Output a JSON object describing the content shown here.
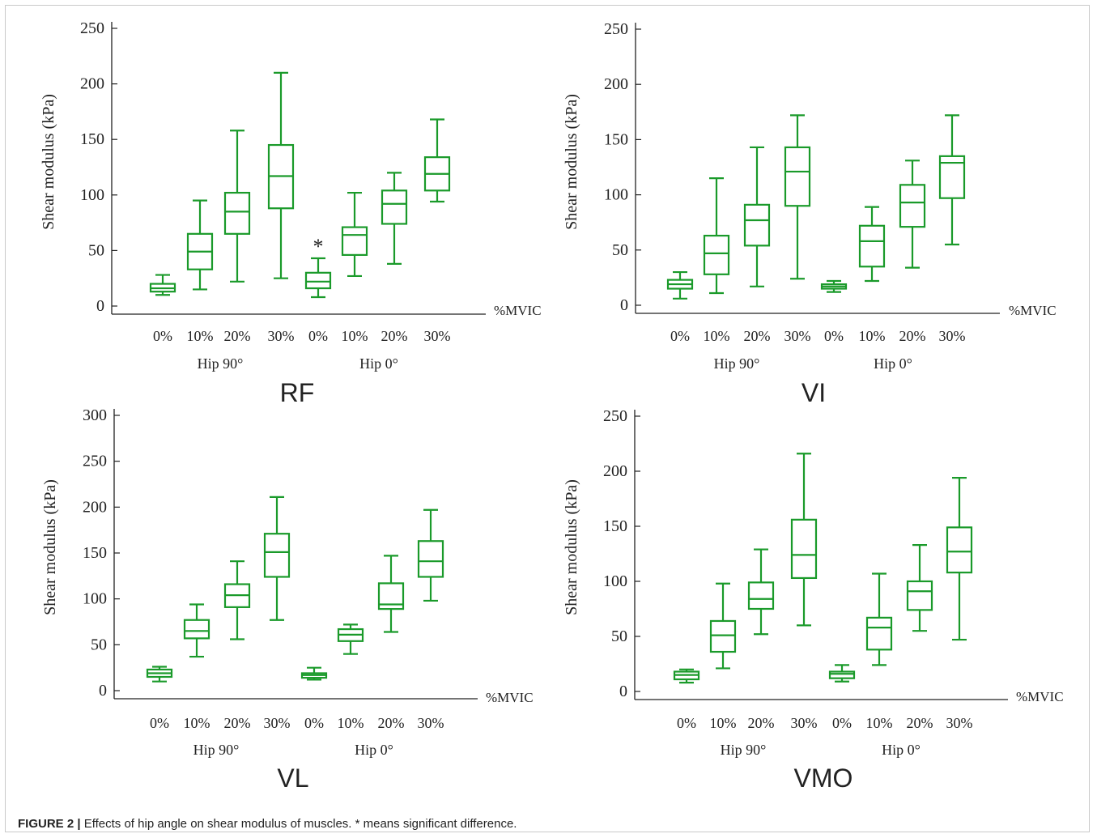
{
  "figure": {
    "caption_label": "FIGURE 2 |",
    "caption_text": " Effects of hip angle on shear modulus of muscles. * means significant difference."
  },
  "chart_data": [
    {
      "type": "box",
      "title": "RF",
      "ylabel": "Shear modulus (kPa)",
      "xlabel": "%MVIC",
      "ylim": [
        0,
        250
      ],
      "yticks": [
        0,
        50,
        100,
        150,
        200,
        250
      ],
      "groups": [
        "Hip 90°",
        "Hip 0°"
      ],
      "categories": [
        "0%",
        "10%",
        "20%",
        "30%",
        "0%",
        "10%",
        "20%",
        "30%"
      ],
      "boxes": [
        {
          "group": "Hip 90°",
          "level": "0%",
          "min": 10,
          "q1": 13,
          "median": 16,
          "q3": 20,
          "max": 28
        },
        {
          "group": "Hip 90°",
          "level": "10%",
          "min": 15,
          "q1": 33,
          "median": 49,
          "q3": 65,
          "max": 95
        },
        {
          "group": "Hip 90°",
          "level": "20%",
          "min": 22,
          "q1": 65,
          "median": 85,
          "q3": 102,
          "max": 158
        },
        {
          "group": "Hip 90°",
          "level": "30%",
          "min": 25,
          "q1": 88,
          "median": 117,
          "q3": 145,
          "max": 210
        },
        {
          "group": "Hip 0°",
          "level": "0%",
          "min": 8,
          "q1": 16,
          "median": 22,
          "q3": 30,
          "max": 43,
          "annotation": "*"
        },
        {
          "group": "Hip 0°",
          "level": "10%",
          "min": 27,
          "q1": 46,
          "median": 64,
          "q3": 71,
          "max": 102
        },
        {
          "group": "Hip 0°",
          "level": "20%",
          "min": 38,
          "q1": 74,
          "median": 92,
          "q3": 104,
          "max": 120
        },
        {
          "group": "Hip 0°",
          "level": "30%",
          "min": 94,
          "q1": 104,
          "median": 119,
          "q3": 134,
          "max": 168
        }
      ]
    },
    {
      "type": "box",
      "title": "VI",
      "ylabel": "Shear modulus (kPa)",
      "xlabel": "%MVIC",
      "ylim": [
        0,
        250
      ],
      "yticks": [
        0,
        50,
        100,
        150,
        200,
        250
      ],
      "groups": [
        "Hip 90°",
        "Hip 0°"
      ],
      "categories": [
        "0%",
        "10%",
        "20%",
        "30%",
        "0%",
        "10%",
        "20%",
        "30%"
      ],
      "boxes": [
        {
          "group": "Hip 90°",
          "level": "0%",
          "min": 6,
          "q1": 15,
          "median": 19,
          "q3": 23,
          "max": 30
        },
        {
          "group": "Hip 90°",
          "level": "10%",
          "min": 11,
          "q1": 28,
          "median": 47,
          "q3": 63,
          "max": 115
        },
        {
          "group": "Hip 90°",
          "level": "20%",
          "min": 17,
          "q1": 54,
          "median": 77,
          "q3": 91,
          "max": 143
        },
        {
          "group": "Hip 90°",
          "level": "30%",
          "min": 24,
          "q1": 90,
          "median": 121,
          "q3": 143,
          "max": 172
        },
        {
          "group": "Hip 0°",
          "level": "0%",
          "min": 12,
          "q1": 15,
          "median": 17,
          "q3": 19,
          "max": 22
        },
        {
          "group": "Hip 0°",
          "level": "10%",
          "min": 22,
          "q1": 35,
          "median": 58,
          "q3": 72,
          "max": 89
        },
        {
          "group": "Hip 0°",
          "level": "20%",
          "min": 34,
          "q1": 71,
          "median": 93,
          "q3": 109,
          "max": 131
        },
        {
          "group": "Hip 0°",
          "level": "30%",
          "min": 55,
          "q1": 97,
          "median": 129,
          "q3": 135,
          "max": 172
        }
      ]
    },
    {
      "type": "box",
      "title": "VL",
      "ylabel": "Shear modulus (kPa)",
      "xlabel": "%MVIC",
      "ylim": [
        0,
        300
      ],
      "yticks": [
        0,
        50,
        100,
        150,
        200,
        250,
        300
      ],
      "groups": [
        "Hip 90°",
        "Hip 0°"
      ],
      "categories": [
        "0%",
        "10%",
        "20%",
        "30%",
        "0%",
        "10%",
        "20%",
        "30%"
      ],
      "boxes": [
        {
          "group": "Hip 90°",
          "level": "0%",
          "min": 10,
          "q1": 15,
          "median": 19,
          "q3": 23,
          "max": 26
        },
        {
          "group": "Hip 90°",
          "level": "10%",
          "min": 37,
          "q1": 57,
          "median": 65,
          "q3": 77,
          "max": 94
        },
        {
          "group": "Hip 90°",
          "level": "20%",
          "min": 56,
          "q1": 91,
          "median": 104,
          "q3": 116,
          "max": 141
        },
        {
          "group": "Hip 90°",
          "level": "30%",
          "min": 77,
          "q1": 124,
          "median": 151,
          "q3": 171,
          "max": 211
        },
        {
          "group": "Hip 0°",
          "level": "0%",
          "min": 12,
          "q1": 14,
          "median": 17,
          "q3": 19,
          "max": 25
        },
        {
          "group": "Hip 0°",
          "level": "10%",
          "min": 40,
          "q1": 54,
          "median": 61,
          "q3": 67,
          "max": 72
        },
        {
          "group": "Hip 0°",
          "level": "20%",
          "min": 64,
          "q1": 89,
          "median": 94,
          "q3": 117,
          "max": 147
        },
        {
          "group": "Hip 0°",
          "level": "30%",
          "min": 98,
          "q1": 124,
          "median": 141,
          "q3": 163,
          "max": 197
        }
      ]
    },
    {
      "type": "box",
      "title": "VMO",
      "ylabel": "Shear modulus (kPa)",
      "xlabel": "%MVIC",
      "ylim": [
        0,
        250
      ],
      "yticks": [
        0,
        50,
        100,
        150,
        200,
        250
      ],
      "groups": [
        "Hip 90°",
        "Hip 0°"
      ],
      "categories": [
        "0%",
        "10%",
        "20%",
        "30%",
        "0%",
        "10%",
        "20%",
        "30%"
      ],
      "boxes": [
        {
          "group": "Hip 90°",
          "level": "0%",
          "min": 8,
          "q1": 11,
          "median": 15,
          "q3": 18,
          "max": 20
        },
        {
          "group": "Hip 90°",
          "level": "10%",
          "min": 21,
          "q1": 36,
          "median": 51,
          "q3": 64,
          "max": 98
        },
        {
          "group": "Hip 90°",
          "level": "20%",
          "min": 52,
          "q1": 75,
          "median": 84,
          "q3": 99,
          "max": 129
        },
        {
          "group": "Hip 90°",
          "level": "30%",
          "min": 60,
          "q1": 103,
          "median": 124,
          "q3": 156,
          "max": 216
        },
        {
          "group": "Hip 0°",
          "level": "0%",
          "min": 9,
          "q1": 12,
          "median": 16,
          "q3": 18,
          "max": 24
        },
        {
          "group": "Hip 0°",
          "level": "10%",
          "min": 24,
          "q1": 38,
          "median": 58,
          "q3": 67,
          "max": 107
        },
        {
          "group": "Hip 0°",
          "level": "20%",
          "min": 55,
          "q1": 74,
          "median": 91,
          "q3": 100,
          "max": 133
        },
        {
          "group": "Hip 0°",
          "level": "30%",
          "min": 47,
          "q1": 108,
          "median": 127,
          "q3": 149,
          "max": 194
        }
      ]
    }
  ],
  "style": {
    "box_color": "#1a9a2a",
    "axis_color": "#222222",
    "text_color": "#222222"
  }
}
